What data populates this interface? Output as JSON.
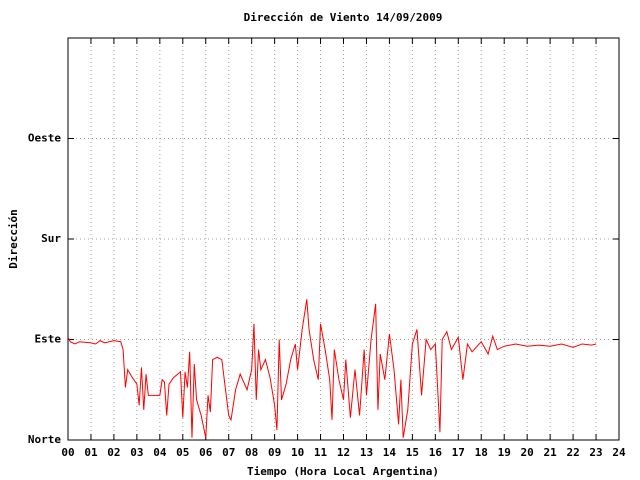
{
  "chart_data": {
    "type": "line",
    "title": "Dirección de Viento 14/09/2009",
    "xlabel": "Tiempo (Hora Local Argentina)",
    "ylabel": "Dirección",
    "color": "#ff0000",
    "grid": true,
    "xlim": [
      0,
      24
    ],
    "ylim": [
      0,
      360
    ],
    "xticks": [
      {
        "value": 0,
        "label": "00"
      },
      {
        "value": 1,
        "label": "01"
      },
      {
        "value": 2,
        "label": "02"
      },
      {
        "value": 3,
        "label": "03"
      },
      {
        "value": 4,
        "label": "04"
      },
      {
        "value": 5,
        "label": "05"
      },
      {
        "value": 6,
        "label": "06"
      },
      {
        "value": 7,
        "label": "07"
      },
      {
        "value": 8,
        "label": "08"
      },
      {
        "value": 9,
        "label": "09"
      },
      10,
      11,
      12,
      13,
      14,
      15,
      16,
      17,
      18,
      19,
      20,
      21,
      22,
      23,
      24
    ],
    "yticks": [
      {
        "value": 0,
        "label": "Norte"
      },
      {
        "value": 90,
        "label": "Este"
      },
      {
        "value": 180,
        "label": "Sur"
      },
      {
        "value": 270,
        "label": "Oeste"
      }
    ],
    "x": [
      0.0,
      0.1,
      0.3,
      0.5,
      1.0,
      1.2,
      1.4,
      1.6,
      2.0,
      2.3,
      2.4,
      2.5,
      2.6,
      2.8,
      3.0,
      3.1,
      3.2,
      3.3,
      3.4,
      3.5,
      4.0,
      4.1,
      4.2,
      4.3,
      4.4,
      4.6,
      4.9,
      5.0,
      5.1,
      5.2,
      5.3,
      5.4,
      5.5,
      5.6,
      5.8,
      6.0,
      6.1,
      6.2,
      6.3,
      6.5,
      6.7,
      7.0,
      7.1,
      7.3,
      7.5,
      7.8,
      8.0,
      8.1,
      8.2,
      8.3,
      8.4,
      8.6,
      8.8,
      9.0,
      9.1,
      9.2,
      9.3,
      9.5,
      9.7,
      9.9,
      10.0,
      10.2,
      10.4,
      10.5,
      10.7,
      10.9,
      11.0,
      11.2,
      11.4,
      11.5,
      11.6,
      11.8,
      12.0,
      12.1,
      12.3,
      12.5,
      12.7,
      12.9,
      13.0,
      13.2,
      13.4,
      13.5,
      13.6,
      13.8,
      14.0,
      14.2,
      14.4,
      14.5,
      14.6,
      14.8,
      15.0,
      15.2,
      15.4,
      15.6,
      15.8,
      16.0,
      16.2,
      16.3,
      16.5,
      16.7,
      17.0,
      17.2,
      17.4,
      17.6,
      18.0,
      18.3,
      18.5,
      18.7,
      19.0,
      19.5,
      20.0,
      20.5,
      21.0,
      21.5,
      22.0,
      22.4,
      22.8,
      23.0
    ],
    "values": [
      92,
      88,
      86,
      88,
      87,
      86,
      89,
      87,
      89,
      88,
      81,
      47,
      63,
      56,
      50,
      31,
      65,
      27,
      59,
      40,
      40,
      54,
      52,
      22,
      50,
      56,
      61,
      20,
      61,
      47,
      79,
      2,
      68,
      36,
      22,
      2,
      40,
      25,
      72,
      74,
      72,
      22,
      18,
      45,
      59,
      45,
      63,
      104,
      36,
      81,
      63,
      72,
      56,
      31,
      9,
      90,
      36,
      50,
      72,
      86,
      63,
      99,
      126,
      99,
      72,
      54,
      104,
      81,
      54,
      18,
      81,
      54,
      36,
      72,
      20,
      63,
      22,
      81,
      40,
      90,
      122,
      27,
      77,
      54,
      95,
      63,
      14,
      54,
      2,
      27,
      86,
      99,
      40,
      90,
      81,
      86,
      7,
      90,
      97,
      81,
      92,
      54,
      86,
      79,
      88,
      77,
      93,
      81,
      84,
      86,
      84,
      85,
      84,
      86,
      83,
      86,
      85,
      86
    ]
  }
}
